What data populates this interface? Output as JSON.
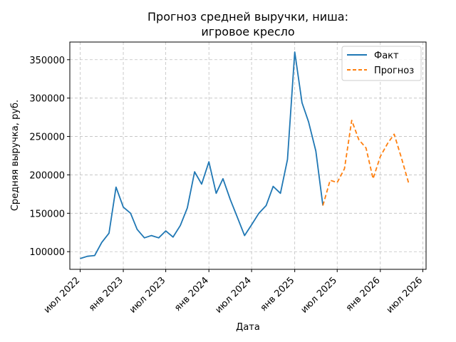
{
  "chart_data": {
    "type": "line",
    "title_lines": [
      "Прогноз средней выручки, ниша:",
      "игровое кресло"
    ],
    "xlabel": "Дата",
    "ylabel": "Средняя выручка, руб.",
    "grid": true,
    "legend_position": "top-right",
    "x_ticks": [
      "июл 2022",
      "янв 2023",
      "июл 2023",
      "янв 2024",
      "июл 2024",
      "янв 2025",
      "июл 2025",
      "янв 2026",
      "июл 2026"
    ],
    "x_tick_dates": [
      "2022-07-01",
      "2023-01-01",
      "2023-07-01",
      "2024-01-01",
      "2024-07-01",
      "2025-01-01",
      "2025-07-01",
      "2026-01-01",
      "2026-07-01"
    ],
    "x_range": [
      "2022-05-18",
      "2026-07-15"
    ],
    "y_ticks": [
      100000,
      150000,
      200000,
      250000,
      300000,
      350000
    ],
    "ylim": [
      77000,
      373000
    ],
    "colors": {
      "fact": "#1f77b4",
      "forecast": "#ff7f0e"
    },
    "series": [
      {
        "name": "Факт",
        "style": "solid",
        "x": [
          "2022-07-01",
          "2022-08-01",
          "2022-09-01",
          "2022-10-01",
          "2022-11-01",
          "2022-12-01",
          "2023-01-01",
          "2023-02-01",
          "2023-03-01",
          "2023-04-01",
          "2023-05-01",
          "2023-06-01",
          "2023-07-01",
          "2023-08-01",
          "2023-09-01",
          "2023-10-01",
          "2023-11-01",
          "2023-12-01",
          "2024-01-01",
          "2024-02-01",
          "2024-03-01",
          "2024-04-01",
          "2024-05-01",
          "2024-06-01",
          "2024-07-01",
          "2024-08-01",
          "2024-09-01",
          "2024-10-01",
          "2024-11-01",
          "2024-12-01",
          "2025-01-01",
          "2025-02-01",
          "2025-03-01",
          "2025-04-01",
          "2025-05-01"
        ],
        "y": [
          91000,
          94000,
          95000,
          112000,
          124000,
          184000,
          158000,
          150000,
          129000,
          118000,
          121000,
          118000,
          127000,
          119000,
          134000,
          157000,
          204000,
          188000,
          217000,
          176000,
          195000,
          168000,
          145000,
          121000,
          135000,
          150000,
          160000,
          185000,
          176000,
          220000,
          360000,
          294000,
          269000,
          231000,
          160000
        ]
      },
      {
        "name": "Прогноз",
        "style": "dashed",
        "x": [
          "2025-05-01",
          "2025-06-01",
          "2025-07-01",
          "2025-08-01",
          "2025-09-01",
          "2025-10-01",
          "2025-11-01",
          "2025-12-01",
          "2026-01-01",
          "2026-02-01",
          "2026-03-01",
          "2026-04-01",
          "2026-05-01"
        ],
        "y": [
          160000,
          193000,
          190000,
          208000,
          271000,
          246000,
          235000,
          195000,
          224000,
          241000,
          253000,
          222000,
          190000
        ]
      }
    ]
  }
}
